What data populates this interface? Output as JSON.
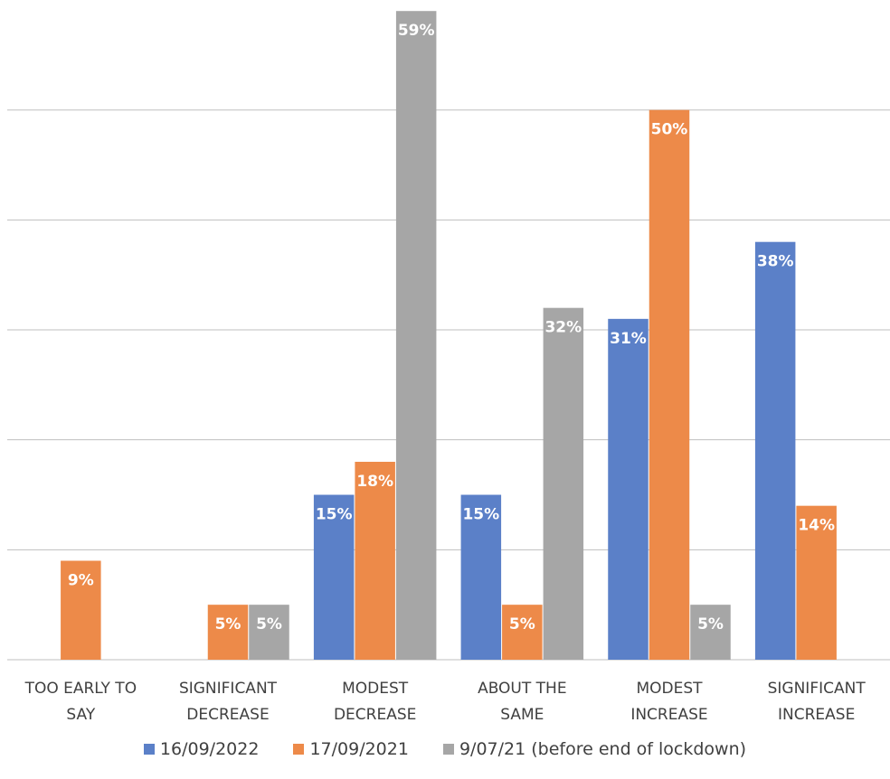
{
  "chart_data": {
    "type": "bar",
    "categories": [
      [
        "TOO EARLY TO",
        "SAY"
      ],
      [
        "SIGNIFICANT",
        "DECREASE"
      ],
      [
        "MODEST",
        "DECREASE"
      ],
      [
        "ABOUT THE",
        "SAME"
      ],
      [
        "MODEST",
        "INCREASE"
      ],
      [
        "SIGNIFICANT",
        "INCREASE"
      ]
    ],
    "series": [
      {
        "name": "16/09/2022",
        "color": "#5b80c8",
        "values": [
          0,
          0,
          15,
          15,
          31,
          38
        ],
        "labels": [
          "0%",
          "0%",
          "15%",
          "15%",
          "31%",
          "38%"
        ]
      },
      {
        "name": "17/09/2021",
        "color": "#ed8a49",
        "values": [
          9,
          5,
          18,
          5,
          50,
          14
        ],
        "labels": [
          "9%",
          "5%",
          "18%",
          "5%",
          "50%",
          "14%"
        ]
      },
      {
        "name": "9/07/21 (before end of lockdown)",
        "color": "#a6a6a6",
        "values": [
          0,
          5,
          59,
          32,
          5,
          0
        ],
        "labels": [
          "0%",
          "5%",
          "59%",
          "32%",
          "5%",
          "0%"
        ]
      }
    ],
    "ylim": [
      0,
      60
    ],
    "gridlines": [
      10,
      20,
      30,
      40,
      50
    ],
    "grid": true,
    "legend": "bottom",
    "title": "",
    "xlabel": "",
    "ylabel": ""
  }
}
